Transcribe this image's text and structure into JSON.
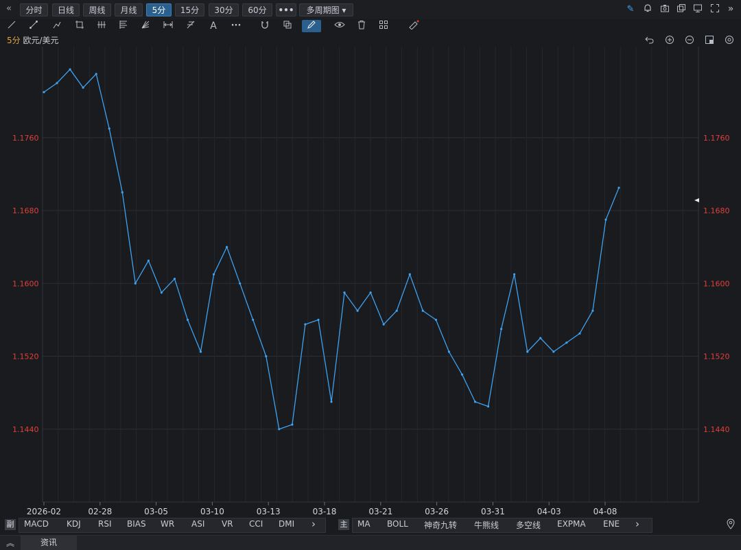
{
  "topbar": {
    "collapse_icon": "«",
    "periods": [
      "分时",
      "日线",
      "周线",
      "月线",
      "5分",
      "15分",
      "30分",
      "60分"
    ],
    "active_period": "5分",
    "more_label": "•••",
    "multi_period_label": "多周期图 ▾",
    "right_icons": [
      "pen-icon",
      "bell-icon",
      "camera-icon",
      "copy-icon",
      "screen-icon",
      "fullscreen-icon",
      "expand-icon"
    ]
  },
  "toolbar": {
    "tools": [
      "line-tool-icon",
      "ray-tool-icon",
      "path-tool-icon",
      "crop-tool-icon",
      "parallel-tool-icon",
      "fibonacci-tool-icon",
      "fan-tool-icon",
      "measure-tool-icon",
      "pitchfork-tool-icon",
      "text-tool-icon",
      "more-tool-icon",
      "magnet-icon",
      "layers-icon",
      "pencil-icon",
      "eye-icon",
      "trash-icon",
      "grid-icon",
      "ruler-icon"
    ]
  },
  "symbol": {
    "period": "5分",
    "name": "欧元/美元"
  },
  "chart_tools": [
    "undo-icon",
    "zoom-in-icon",
    "zoom-out-icon",
    "layout-icon",
    "settings-icon"
  ],
  "colors": {
    "line": "#3ea2f0",
    "price_label": "#e0403a",
    "active": "#2b5f8d",
    "background": "#1a1b1f"
  },
  "chart_data": {
    "type": "line",
    "ylim": [
      1.136,
      1.186
    ],
    "y_ticks": [
      "1.1760",
      "1.1680",
      "1.1600",
      "1.1520",
      "1.1440"
    ],
    "x_ticks": [
      "2026-02",
      "02-28",
      "03-05",
      "03-10",
      "03-13",
      "03-18",
      "03-21",
      "03-26",
      "03-31",
      "04-03",
      "04-08"
    ],
    "grid": true,
    "series": [
      {
        "x": [
          "2026-02-24",
          "2026-02-25",
          "2026-02-26",
          "2026-02-27",
          "2026-02-28",
          "2026-03-01",
          "2026-03-02",
          "2026-03-03",
          "2026-03-04",
          "2026-03-05",
          "2026-03-06",
          "2026-03-07",
          "2026-03-08",
          "2026-03-09",
          "2026-03-10",
          "2026-03-11",
          "2026-03-12",
          "2026-03-13",
          "2026-03-14",
          "2026-03-15",
          "2026-03-16",
          "2026-03-17",
          "2026-03-18",
          "2026-03-19",
          "2026-03-20",
          "2026-03-21",
          "2026-03-22",
          "2026-03-23",
          "2026-03-24",
          "2026-03-25",
          "2026-03-26",
          "2026-03-27",
          "2026-03-28",
          "2026-03-29",
          "2026-03-30",
          "2026-03-31",
          "2026-04-01",
          "2026-04-02",
          "2026-04-03",
          "2026-04-04",
          "2026-04-05",
          "2026-04-06",
          "2026-04-07",
          "2026-04-08",
          "2026-04-09"
        ],
        "values": [
          1.181,
          1.182,
          1.1835,
          1.1815,
          1.183,
          1.177,
          1.17,
          1.16,
          1.1625,
          1.159,
          1.1605,
          1.156,
          1.1525,
          1.161,
          1.164,
          1.16,
          1.156,
          1.152,
          1.144,
          1.1445,
          1.1555,
          1.156,
          1.147,
          1.159,
          1.157,
          1.159,
          1.1555,
          1.157,
          1.161,
          1.157,
          1.156,
          1.1525,
          1.15,
          1.147,
          1.1465,
          1.155,
          1.161,
          1.1525,
          1.154,
          1.1525,
          1.1535,
          1.1545,
          1.157,
          1.167,
          1.1705
        ]
      }
    ]
  },
  "indicators_sub": [
    "MACD",
    "KDJ",
    "RSI",
    "BIAS",
    "WR",
    "ASI",
    "VR",
    "CCI",
    "DMI"
  ],
  "indicators_main_label": "主",
  "indicators_main": [
    "MA",
    "BOLL",
    "神奇九转",
    "牛熊线",
    "多空线",
    "EXPMA",
    "ENE"
  ],
  "sub_chevron": "›",
  "main_chevron": "›",
  "sub_marker": "副",
  "news_label": "资讯",
  "news_chevron": "︽"
}
